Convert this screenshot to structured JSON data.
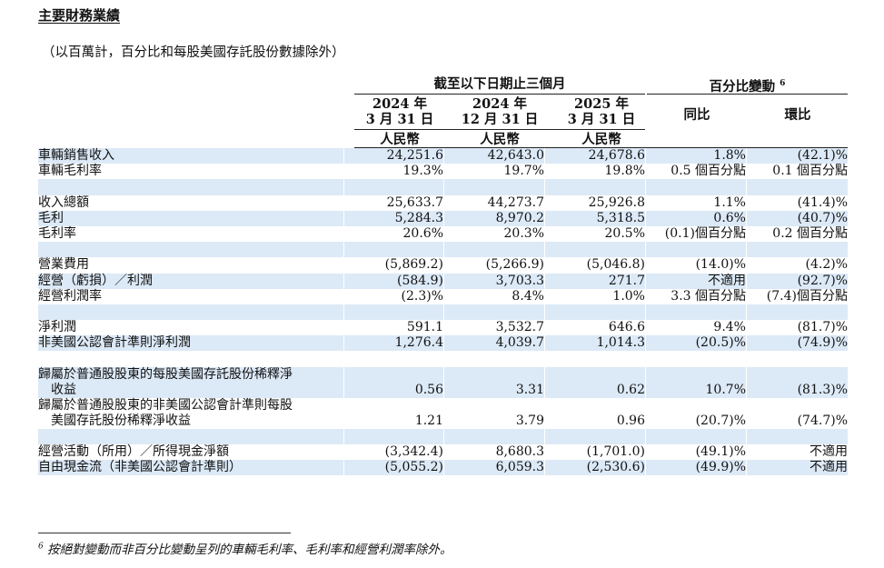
{
  "title": "主要財務業績",
  "subtitle": "（以百萬計，百分比和每股美國存託股份數據除外）",
  "header": {
    "period_group": "截至以下日期止三個月",
    "change_group": "百分比變動",
    "change_footnote_mark": "6",
    "columns": [
      {
        "year": "2024 年",
        "date": "3 月 31 日",
        "currency": "人民幣"
      },
      {
        "year": "2024 年",
        "date": "12 月 31 日",
        "currency": "人民幣"
      },
      {
        "year": "2025 年",
        "date": "3 月 31 日",
        "currency": "人民幣"
      }
    ],
    "yoy": "同比",
    "qoq": "環比"
  },
  "rows": [
    {
      "label": "車輛銷售收入",
      "v": [
        "24,251.6",
        "42,643.0",
        "24,678.6",
        "1.8%",
        "(42.1)%"
      ]
    },
    {
      "label": "車輛毛利率",
      "v": [
        "19.3%",
        "19.7%",
        "19.8%",
        "0.5 個百分點",
        "0.1 個百分點"
      ]
    },
    {
      "label": "",
      "v": [
        "",
        "",
        "",
        "",
        ""
      ]
    },
    {
      "label": "收入總額",
      "v": [
        "25,633.7",
        "44,273.7",
        "25,926.8",
        "1.1%",
        "(41.4)%"
      ]
    },
    {
      "label": "毛利",
      "v": [
        "5,284.3",
        "8,970.2",
        "5,318.5",
        "0.6%",
        "(40.7)%"
      ]
    },
    {
      "label": "毛利率",
      "v": [
        "20.6%",
        "20.3%",
        "20.5%",
        "(0.1)個百分點",
        "0.2 個百分點"
      ]
    },
    {
      "label": "",
      "v": [
        "",
        "",
        "",
        "",
        ""
      ]
    },
    {
      "label": "營業費用",
      "v": [
        "(5,869.2)",
        "(5,266.9)",
        "(5,046.8)",
        "(14.0)%",
        "(4.2)%"
      ]
    },
    {
      "label": "經營（虧損）／利潤",
      "v": [
        "(584.9)",
        "3,703.3",
        "271.7",
        "不適用",
        "(92.7)%"
      ]
    },
    {
      "label": "經營利潤率",
      "v": [
        "(2.3)%",
        "8.4%",
        "1.0%",
        "3.3 個百分點",
        "(7.4)個百分點"
      ]
    },
    {
      "label": "",
      "v": [
        "",
        "",
        "",
        "",
        ""
      ]
    },
    {
      "label": "淨利潤",
      "v": [
        "591.1",
        "3,532.7",
        "646.6",
        "9.4%",
        "(81.7)%"
      ]
    },
    {
      "label": "非美國公認會計準則淨利潤",
      "v": [
        "1,276.4",
        "4,039.7",
        "1,014.3",
        "(20.5)%",
        "(74.9)%"
      ]
    },
    {
      "label": "",
      "v": [
        "",
        "",
        "",
        "",
        ""
      ]
    },
    {
      "label": "歸屬於普通股股東的每股美國存託股份稀釋淨",
      "label2": "收益",
      "v": [
        "0.56",
        "3.31",
        "0.62",
        "10.7%",
        "(81.3)%"
      ]
    },
    {
      "label": "歸屬於普通股股東的非美國公認會計準則每股",
      "label2": "美國存託股份稀釋淨收益",
      "v": [
        "1.21",
        "3.79",
        "0.96",
        "(20.7)%",
        "(74.7)%"
      ]
    },
    {
      "label": "",
      "v": [
        "",
        "",
        "",
        "",
        ""
      ]
    },
    {
      "label": "經營活動（所用）／所得現金淨額",
      "v": [
        "(3,342.4)",
        "8,680.3",
        "(1,701.0)",
        "(49.1)%",
        "不適用"
      ]
    },
    {
      "label": "自由現金流（非美國公認會計準則）",
      "v": [
        "(5,055.2)",
        "6,059.3",
        "(2,530.6)",
        "(49.9)%",
        "不適用"
      ]
    }
  ],
  "footnote": {
    "mark": "6",
    "text": "按絕對變動而非百分比變動呈列的車輛毛利率、毛利率和經營利潤率除外。"
  }
}
